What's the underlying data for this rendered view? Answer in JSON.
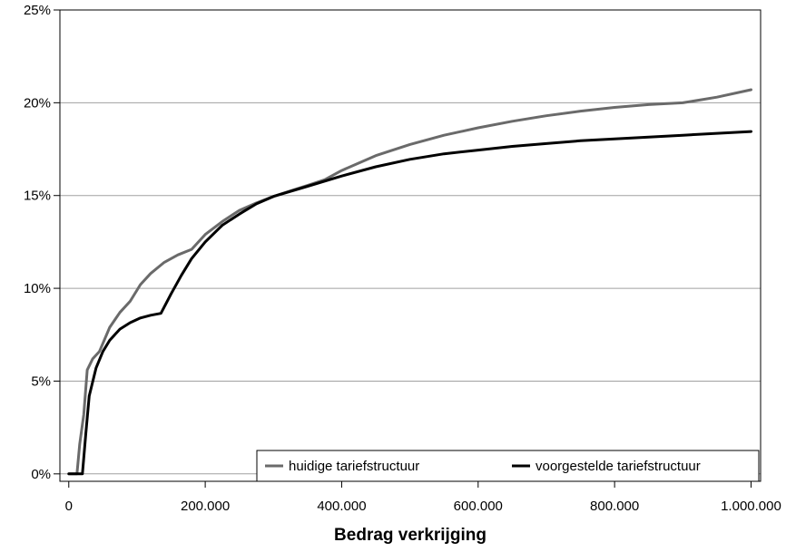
{
  "chart_data": {
    "type": "line",
    "title": "",
    "xlabel": "Bedrag verkrijging",
    "ylabel": "",
    "xlim": [
      -13000,
      1014000
    ],
    "ylim": [
      -0.4,
      25
    ],
    "grid": true,
    "legend_position": "bottom-right",
    "x_ticks": [
      {
        "value": 0,
        "label": "0"
      },
      {
        "value": 200000,
        "label": "200.000"
      },
      {
        "value": 400000,
        "label": "400.000"
      },
      {
        "value": 600000,
        "label": "600.000"
      },
      {
        "value": 800000,
        "label": "800.000"
      },
      {
        "value": 1000000,
        "label": "1.000.000"
      }
    ],
    "y_ticks": [
      {
        "value": 0,
        "label": "0%"
      },
      {
        "value": 5,
        "label": "5%"
      },
      {
        "value": 10,
        "label": "10%"
      },
      {
        "value": 15,
        "label": "15%"
      },
      {
        "value": 20,
        "label": "20%"
      },
      {
        "value": 25,
        "label": "25%"
      }
    ],
    "series": [
      {
        "name": "huidige tariefstructuur",
        "color": "#6a6a6a",
        "points": [
          [
            0,
            0
          ],
          [
            12000,
            0
          ],
          [
            16000,
            1.6
          ],
          [
            22000,
            3.2
          ],
          [
            27000,
            5.6
          ],
          [
            35000,
            6.2
          ],
          [
            45000,
            6.6
          ],
          [
            60000,
            7.9
          ],
          [
            75000,
            8.7
          ],
          [
            90000,
            9.3
          ],
          [
            105000,
            10.2
          ],
          [
            120000,
            10.8
          ],
          [
            140000,
            11.4
          ],
          [
            160000,
            11.8
          ],
          [
            180000,
            12.1
          ],
          [
            200000,
            12.9
          ],
          [
            225000,
            13.6
          ],
          [
            250000,
            14.2
          ],
          [
            275000,
            14.6
          ],
          [
            300000,
            14.95
          ],
          [
            325000,
            15.25
          ],
          [
            350000,
            15.55
          ],
          [
            375000,
            15.85
          ],
          [
            400000,
            16.35
          ],
          [
            450000,
            17.15
          ],
          [
            500000,
            17.75
          ],
          [
            550000,
            18.25
          ],
          [
            600000,
            18.65
          ],
          [
            650000,
            19.0
          ],
          [
            700000,
            19.3
          ],
          [
            750000,
            19.55
          ],
          [
            800000,
            19.75
          ],
          [
            850000,
            19.9
          ],
          [
            900000,
            20.0
          ],
          [
            950000,
            20.3
          ],
          [
            1000000,
            20.7
          ]
        ]
      },
      {
        "name": "voorgestelde tariefstructuur",
        "color": "#000000",
        "points": [
          [
            0,
            0
          ],
          [
            20000,
            0
          ],
          [
            25000,
            2.2
          ],
          [
            30000,
            4.2
          ],
          [
            40000,
            5.7
          ],
          [
            50000,
            6.6
          ],
          [
            60000,
            7.2
          ],
          [
            75000,
            7.8
          ],
          [
            90000,
            8.15
          ],
          [
            105000,
            8.4
          ],
          [
            120000,
            8.55
          ],
          [
            135000,
            8.65
          ],
          [
            150000,
            9.7
          ],
          [
            165000,
            10.7
          ],
          [
            180000,
            11.6
          ],
          [
            200000,
            12.5
          ],
          [
            225000,
            13.4
          ],
          [
            250000,
            14.0
          ],
          [
            275000,
            14.55
          ],
          [
            300000,
            14.95
          ],
          [
            350000,
            15.5
          ],
          [
            400000,
            16.05
          ],
          [
            450000,
            16.55
          ],
          [
            500000,
            16.95
          ],
          [
            550000,
            17.25
          ],
          [
            600000,
            17.45
          ],
          [
            650000,
            17.65
          ],
          [
            700000,
            17.8
          ],
          [
            750000,
            17.95
          ],
          [
            800000,
            18.05
          ],
          [
            850000,
            18.15
          ],
          [
            900000,
            18.25
          ],
          [
            950000,
            18.35
          ],
          [
            1000000,
            18.45
          ]
        ]
      }
    ]
  }
}
